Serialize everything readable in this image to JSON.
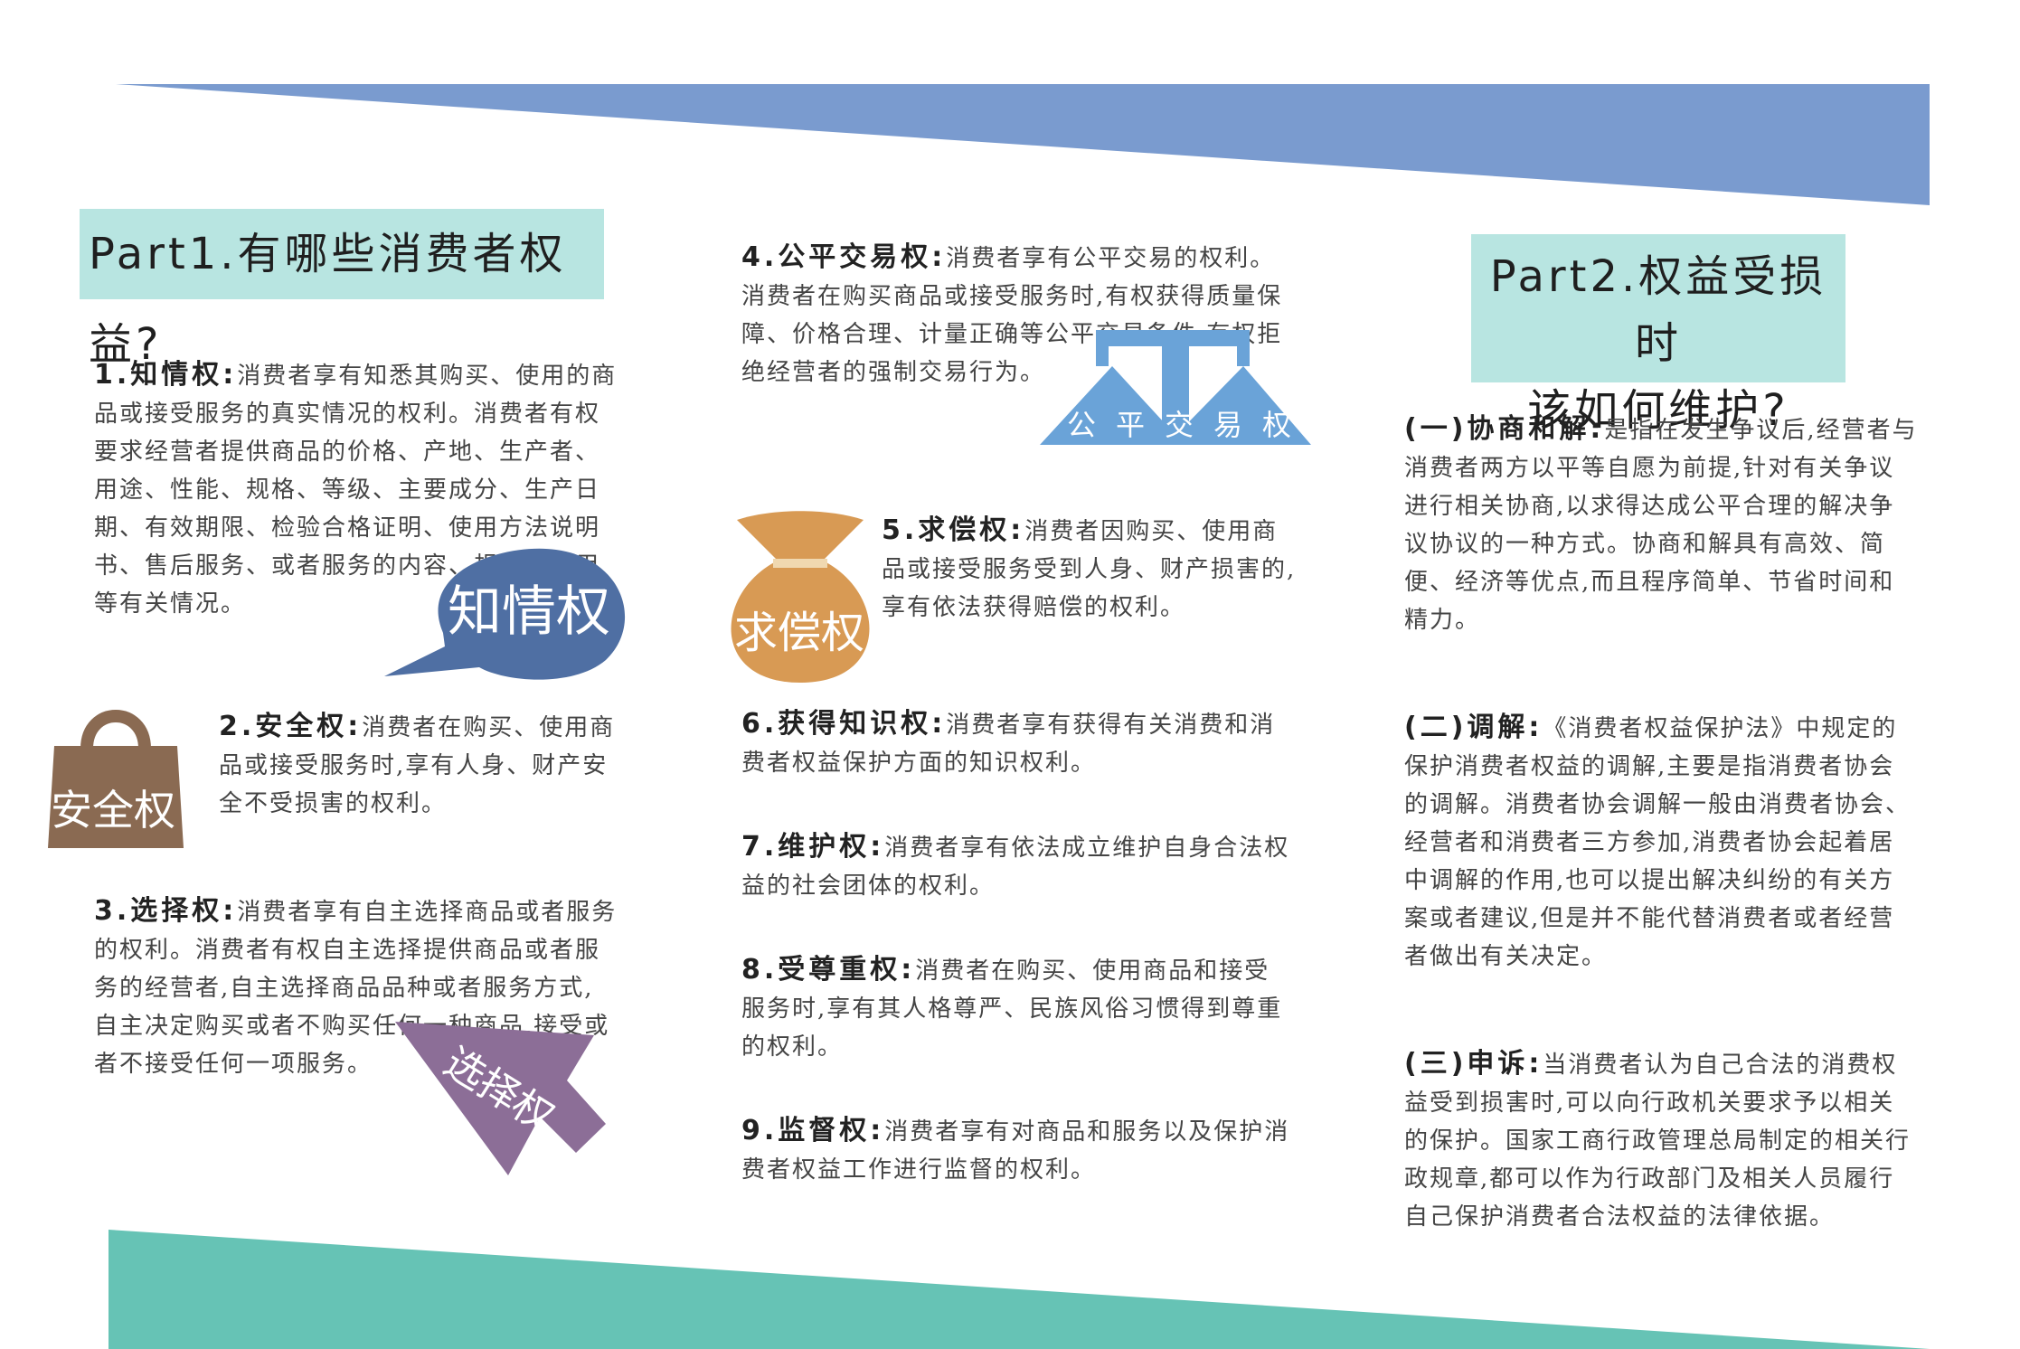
{
  "part1_title": "Part1.有哪些消费者权益?",
  "part2_title_line1": "Part2.权益受损时",
  "part2_title_line2": "该如何维护?",
  "colors": {
    "top_band": "#7a9bcf",
    "bottom_band": "#66c3b5",
    "title_bg": "#b8e5e1",
    "speech_bubble": "#4f6fa3",
    "bag": "#8a6a52",
    "arrow": "#8c6e97",
    "scale": "#6aa3d8",
    "money_sack": "#d89a54"
  },
  "rights": [
    {
      "heading": "1.知情权:",
      "text": "消费者享有知悉其购买、使用的商品或接受服务的真实情况的权利。消费者有权要求经营者提供商品的价格、产地、生产者、用途、性能、规格、等级、主要成分、生产日期、有效期限、检验合格证明、使用方法说明书、售后服务、或者服务的内容、规格、费用等有关情况。"
    },
    {
      "heading": "2.安全权:",
      "text": "消费者在购买、使用商品或接受服务时,享有人身、财产安全不受损害的权利。"
    },
    {
      "heading": "3.选择权:",
      "text": "消费者享有自主选择商品或者服务的权利。消费者有权自主选择提供商品或者服务的经营者,自主选择商品品种或者服务方式,自主决定购买或者不购买任何一种商品,接受或者不接受任何一项服务。"
    },
    {
      "heading": "4.公平交易权:",
      "text": "消费者享有公平交易的权利。消费者在购买商品或接受服务时,有权获得质量保障、价格合理、计量正确等公平交易条件,有权拒绝经营者的强制交易行为。"
    },
    {
      "heading": "5.求偿权:",
      "text": "消费者因购买、使用商品或接受服务受到人身、财产损害的,享有依法获得赔偿的权利。"
    },
    {
      "heading": "6.获得知识权:",
      "text": "消费者享有获得有关消费和消费者权益保护方面的知识权利。"
    },
    {
      "heading": "7.维护权:",
      "text": "消费者享有依法成立维护自身合法权益的社会团体的权利。"
    },
    {
      "heading": "8.受尊重权:",
      "text": "消费者在购买、使用商品和接受服务时,享有其人格尊严、民族风俗习惯得到尊重的权利。"
    },
    {
      "heading": "9.监督权:",
      "text": "消费者享有对商品和服务以及保护消费者权益工作进行监督的权利。"
    }
  ],
  "remedies": [
    {
      "heading": "(一)协商和解:",
      "text": "是指在发生争议后,经营者与消费者两方以平等自愿为前提,针对有关争议进行相关协商,以求得达成公平合理的解决争议协议的一种方式。协商和解具有高效、简便、经济等优点,而且程序简单、节省时间和精力。"
    },
    {
      "heading": "(二)调解:",
      "text": "《消费者权益保护法》中规定的保护消费者权益的调解,主要是指消费者协会的调解。消费者协会调解一般由消费者协会、经营者和消费者三方参加,消费者协会起着居中调解的作用,也可以提出解决纠纷的有关方案或者建议,但是并不能代替消费者或者经营者做出有关决定。"
    },
    {
      "heading": "(三)申诉:",
      "text": "当消费者认为自己合法的消费权益受到损害时,可以向行政机关要求予以相关的保护。国家工商行政管理总局制定的相关行政规章,都可以作为行政部门及相关人员履行自己保护消费者合法权益的法律依据。"
    }
  ],
  "icons": {
    "know": {
      "label": "知情权",
      "name": "speech-bubble-icon"
    },
    "safety": {
      "label": "安全权",
      "name": "shopping-bag-icon"
    },
    "choice": {
      "label": "选择权",
      "name": "arrow-icon"
    },
    "fair": {
      "label": "公平交易权",
      "name": "balance-scale-icon"
    },
    "compensation": {
      "label": "求偿权",
      "name": "money-sack-icon"
    }
  }
}
